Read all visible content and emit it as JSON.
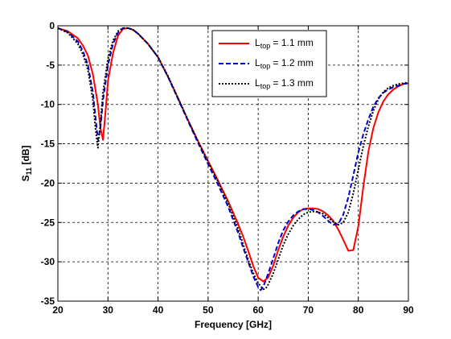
{
  "chart_data": {
    "type": "line",
    "title": "",
    "xlabel": "Frequency [GHz]",
    "ylabel": {
      "main": "S",
      "sub": "11",
      "suffix": " [dB]"
    },
    "xlim": [
      20,
      90
    ],
    "ylim": [
      -35,
      0
    ],
    "xticks": [
      20,
      30,
      40,
      50,
      60,
      70,
      80,
      90
    ],
    "yticks": [
      0,
      -5,
      -10,
      -15,
      -20,
      -25,
      -30,
      -35
    ],
    "grid": true,
    "legend_position": "top-right",
    "series": [
      {
        "name": {
          "main": "L",
          "sub": "top",
          "suffix": " = 1.1 mm"
        },
        "color": "#ff0000",
        "dash": "solid",
        "x": [
          20,
          22,
          24,
          25,
          26,
          27,
          28,
          28.5,
          29,
          29.5,
          30,
          31,
          32,
          33,
          34,
          35,
          36,
          38,
          40,
          42,
          44,
          46,
          48,
          50,
          52,
          54,
          56,
          57,
          58,
          59,
          60,
          61,
          62,
          63,
          64,
          65,
          66,
          67,
          68,
          69,
          70,
          71,
          72,
          73,
          74,
          75,
          76,
          77,
          78,
          79,
          80,
          81,
          82,
          83,
          84,
          85,
          86,
          87,
          88,
          89,
          90
        ],
        "y": [
          -0.3,
          -0.7,
          -1.6,
          -2.5,
          -3.8,
          -6.2,
          -10,
          -13,
          -14.5,
          -11,
          -7,
          -3.5,
          -1.3,
          -0.4,
          -0.3,
          -0.5,
          -1,
          -2.3,
          -4,
          -6.5,
          -9.2,
          -12,
          -14.7,
          -17.2,
          -19.7,
          -22.3,
          -25.2,
          -26.8,
          -28.6,
          -30.5,
          -32,
          -32.5,
          -32,
          -30.5,
          -28.5,
          -26.8,
          -25.4,
          -24.4,
          -23.7,
          -23.3,
          -23.2,
          -23.2,
          -23.3,
          -23.6,
          -24.1,
          -24.8,
          -25.9,
          -27.2,
          -28.6,
          -28.5,
          -25.5,
          -20.5,
          -16,
          -13,
          -11,
          -9.6,
          -8.7,
          -8.1,
          -7.7,
          -7.4,
          -7.3
        ]
      },
      {
        "name": {
          "main": "L",
          "sub": "top",
          "suffix": " = 1.2 mm"
        },
        "color": "#0000cc",
        "dash": "dashed",
        "x": [
          20,
          22,
          24,
          25,
          26,
          27,
          27.5,
          28,
          28.5,
          29,
          30,
          31,
          32,
          33,
          34,
          35,
          36,
          38,
          40,
          42,
          44,
          46,
          48,
          50,
          52,
          54,
          56,
          57,
          58,
          59,
          60,
          60.5,
          61,
          62,
          63,
          64,
          65,
          66,
          67,
          68,
          69,
          70,
          71,
          72,
          73,
          74,
          75,
          76,
          77,
          78,
          79,
          80,
          81,
          82,
          83,
          84,
          85,
          86,
          87,
          88,
          89,
          90
        ],
        "y": [
          -0.3,
          -0.8,
          -2,
          -3.2,
          -5,
          -8.5,
          -11.5,
          -14.5,
          -13,
          -9.5,
          -5,
          -2.3,
          -0.9,
          -0.3,
          -0.3,
          -0.5,
          -1,
          -2.3,
          -4,
          -6.5,
          -9.3,
          -12.1,
          -14.9,
          -17.6,
          -20.2,
          -23,
          -26.3,
          -28.2,
          -30,
          -31.8,
          -33.2,
          -33.6,
          -33.2,
          -31.5,
          -29.6,
          -27.6,
          -26,
          -24.9,
          -24.1,
          -23.6,
          -23.3,
          -23.3,
          -23.4,
          -23.7,
          -24.2,
          -24.8,
          -25.3,
          -25.2,
          -24,
          -21.8,
          -19,
          -16.1,
          -13.8,
          -11.9,
          -10.3,
          -9.2,
          -8.5,
          -8.1,
          -7.8,
          -7.6,
          -7.4,
          -7.3
        ]
      },
      {
        "name": {
          "main": "L",
          "sub": "top",
          "suffix": " = 1.3 mm"
        },
        "color": "#000000",
        "dash": "dotted",
        "x": [
          20,
          22,
          24,
          25,
          26,
          27,
          27.5,
          28,
          28.5,
          29,
          30,
          31,
          32,
          33,
          34,
          35,
          36,
          38,
          40,
          42,
          44,
          46,
          48,
          50,
          52,
          54,
          56,
          57,
          58,
          59,
          60,
          61,
          61.5,
          62,
          63,
          64,
          65,
          66,
          67,
          68,
          69,
          70,
          71,
          72,
          73,
          74,
          75,
          76,
          77,
          78,
          79,
          80,
          81,
          82,
          83,
          84,
          85,
          86,
          87,
          88,
          89,
          90
        ],
        "y": [
          -0.3,
          -0.9,
          -2.3,
          -3.6,
          -5.6,
          -9.5,
          -13,
          -15.5,
          -12.5,
          -8.5,
          -4.2,
          -1.9,
          -0.7,
          -0.3,
          -0.3,
          -0.5,
          -1,
          -2.3,
          -4,
          -6.4,
          -9.2,
          -12,
          -14.7,
          -17.3,
          -19.8,
          -22.6,
          -25.8,
          -27.8,
          -29.7,
          -31.4,
          -32.7,
          -33.5,
          -33.4,
          -32.9,
          -31.5,
          -29.7,
          -27.9,
          -26.5,
          -25.4,
          -24.6,
          -24,
          -23.7,
          -23.6,
          -23.7,
          -23.9,
          -24.4,
          -24.9,
          -25.3,
          -25,
          -23.7,
          -21.3,
          -18.3,
          -15.3,
          -12.8,
          -10.8,
          -9.3,
          -8.4,
          -7.9,
          -7.6,
          -7.4,
          -7.3,
          -7.2
        ]
      }
    ]
  }
}
